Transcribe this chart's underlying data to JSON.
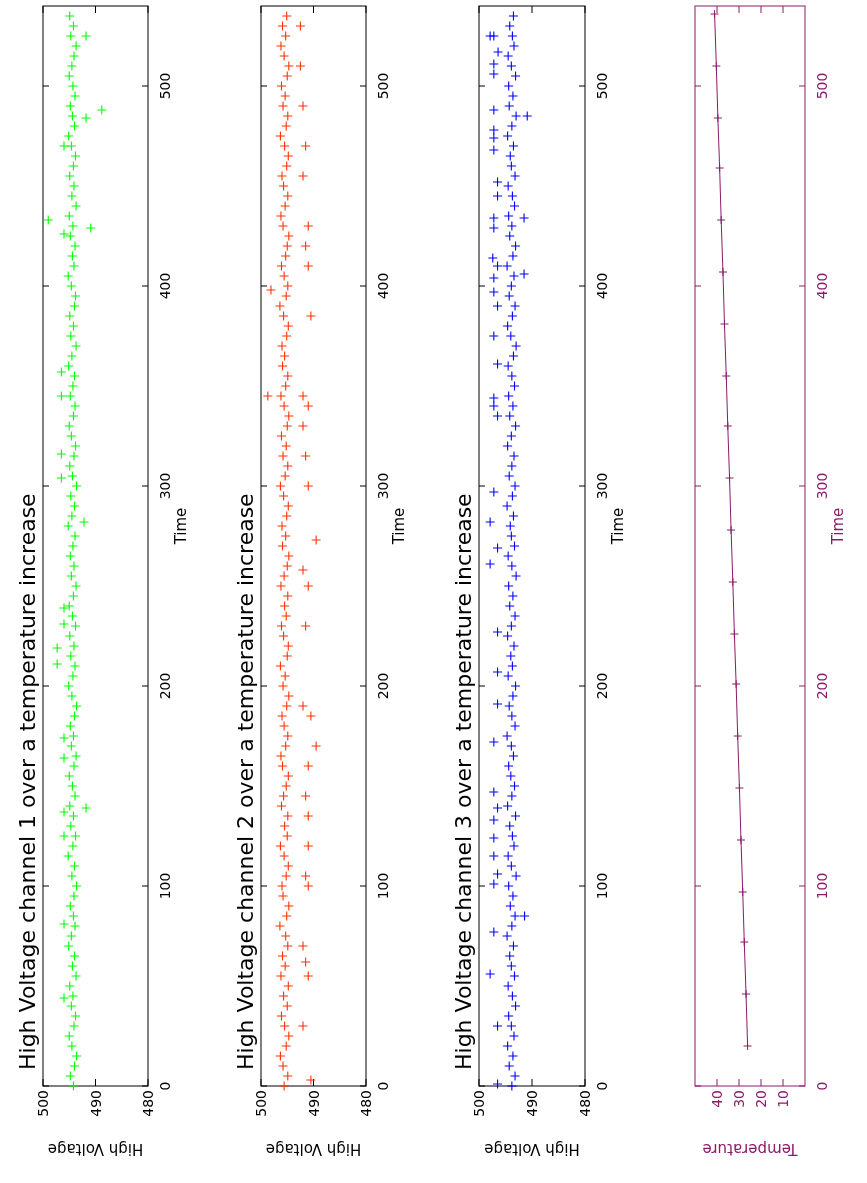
{
  "chart_data": [
    {
      "type": "scatter",
      "title": "High Voltage channel 1 over a temperature increase",
      "xlabel": "High Voltage",
      "ylabel": "Time",
      "xlim": [
        500,
        480
      ],
      "xticks": [
        480,
        490,
        500
      ],
      "ylim": [
        0,
        540
      ],
      "yticks": [
        0,
        100,
        200,
        300,
        400,
        500
      ],
      "marker": "cross",
      "series": [
        {
          "color": "#00ff00",
          "values": [
            0,
            5,
            10,
            15,
            20,
            25,
            30,
            35,
            40,
            45,
            50,
            55,
            60,
            65,
            70,
            75,
            80,
            85,
            90,
            95,
            100,
            105,
            110,
            115,
            120,
            125,
            130,
            135,
            140,
            145,
            150,
            155,
            160,
            165,
            170,
            175,
            180,
            185,
            190,
            195,
            200,
            205,
            210,
            215,
            220,
            225,
            230,
            235,
            240,
            245,
            250,
            255,
            260,
            265,
            270,
            275,
            280,
            285,
            290,
            295,
            300,
            305,
            310,
            315,
            320,
            325,
            330,
            335,
            340,
            345,
            350,
            355,
            360,
            365,
            370,
            375,
            380,
            385,
            390,
            395,
            400,
            405,
            410,
            415,
            420,
            425,
            430,
            435,
            440,
            445,
            450,
            455,
            460,
            465,
            470,
            475,
            480,
            485,
            490,
            495,
            500,
            505,
            510,
            515,
            520,
            525,
            530,
            535,
            433,
            488,
            429,
            470,
            426,
            525,
            484,
            282,
            357,
            345,
            316,
            304,
            219,
            211,
            239,
            231,
            174,
            164,
            137,
            125,
            139,
            81,
            44
          ],
          "x": [
            494.2,
            494.8,
            494.0,
            493.6,
            494.5,
            495.0,
            494.1,
            493.8,
            494.6,
            494.3,
            494.9,
            493.7,
            494.4,
            494.0,
            495.1,
            494.6,
            493.9,
            494.2,
            494.8,
            494.1,
            493.6,
            494.5,
            494.0,
            495.2,
            494.3,
            493.8,
            494.7,
            494.2,
            494.9,
            493.9,
            494.4,
            495.0,
            494.1,
            493.7,
            494.6,
            494.2,
            494.8,
            494.0,
            493.6,
            494.5,
            495.1,
            494.3,
            493.9,
            494.7,
            494.1,
            494.9,
            493.8,
            494.4,
            495.0,
            494.2,
            493.7,
            494.6,
            494.1,
            494.8,
            494.3,
            493.9,
            495.2,
            494.5,
            494.0,
            494.7,
            493.6,
            494.4,
            494.9,
            494.1,
            493.8,
            494.6,
            495.0,
            494.2,
            493.9,
            494.8,
            494.3,
            494.0,
            495.1,
            494.5,
            493.7,
            494.7,
            494.2,
            494.9,
            494.0,
            493.8,
            494.6,
            495.2,
            494.1,
            494.4,
            493.9,
            494.8,
            494.3,
            495.0,
            493.7,
            494.5,
            494.1,
            494.9,
            494.2,
            493.8,
            494.6,
            495.1,
            494.0,
            494.4,
            494.8,
            493.9,
            494.3,
            495.0,
            494.5,
            494.1,
            493.7,
            494.7,
            494.2,
            494.9,
            499.0,
            488.8,
            490.9,
            496.0,
            496.0,
            491.8,
            491.8,
            492.2,
            496.5,
            496.5,
            496.5,
            496.5,
            497.3,
            497.3,
            496.0,
            496.0,
            496.0,
            496.0,
            496.0,
            496.0,
            491.8,
            496.0,
            496.0
          ]
        }
      ]
    },
    {
      "type": "scatter",
      "title": "High Voltage channel 2 over a temperature increase",
      "xlabel": "High Voltage",
      "ylabel": "Time",
      "xlim": [
        500,
        480
      ],
      "xticks": [
        480,
        490,
        500
      ],
      "ylim": [
        0,
        540
      ],
      "yticks": [
        0,
        100,
        200,
        300,
        400,
        500
      ],
      "marker": "cross",
      "series": [
        {
          "color": "#ff3300",
          "values": [
            0,
            5,
            10,
            15,
            20,
            25,
            30,
            35,
            40,
            45,
            50,
            55,
            60,
            65,
            70,
            75,
            80,
            85,
            90,
            95,
            100,
            105,
            110,
            115,
            120,
            125,
            130,
            135,
            140,
            145,
            150,
            155,
            160,
            165,
            170,
            175,
            180,
            185,
            190,
            195,
            200,
            205,
            210,
            215,
            220,
            225,
            230,
            235,
            240,
            245,
            250,
            255,
            260,
            265,
            270,
            275,
            280,
            285,
            290,
            295,
            300,
            305,
            310,
            315,
            320,
            325,
            330,
            335,
            340,
            345,
            350,
            355,
            360,
            365,
            370,
            375,
            380,
            385,
            390,
            395,
            400,
            405,
            410,
            415,
            420,
            425,
            430,
            435,
            440,
            445,
            450,
            455,
            460,
            465,
            470,
            475,
            480,
            485,
            490,
            495,
            500,
            505,
            510,
            515,
            520,
            525,
            530,
            535,
            3,
            30,
            55,
            62,
            70,
            100,
            105,
            120,
            135,
            145,
            160,
            170,
            185,
            190,
            230,
            250,
            258,
            273,
            300,
            315,
            330,
            340,
            345,
            345,
            385,
            398,
            410,
            420,
            430,
            455,
            470,
            490,
            510,
            530
          ],
          "x": [
            495.6,
            494.9,
            495.8,
            496.3,
            495.2,
            494.7,
            495.5,
            496.1,
            495.0,
            495.7,
            494.8,
            496.2,
            495.4,
            495.9,
            494.9,
            495.3,
            496.4,
            495.1,
            494.7,
            495.8,
            496.0,
            495.2,
            494.8,
            495.6,
            496.3,
            495.0,
            495.5,
            494.9,
            496.1,
            495.7,
            495.2,
            494.8,
            495.9,
            496.2,
            495.3,
            494.9,
            495.6,
            496.0,
            495.1,
            494.7,
            495.8,
            495.4,
            496.3,
            495.0,
            494.8,
            495.7,
            496.1,
            495.2,
            495.5,
            494.9,
            496.2,
            495.6,
            495.0,
            494.7,
            495.9,
            495.3,
            496.0,
            495.1,
            494.8,
            495.7,
            496.3,
            495.4,
            494.9,
            495.8,
            495.2,
            496.1,
            495.0,
            494.7,
            495.6,
            496.2,
            495.3,
            494.9,
            495.9,
            495.5,
            496.0,
            495.1,
            494.8,
            495.7,
            496.4,
            495.2,
            494.9,
            495.6,
            496.1,
            495.3,
            495.0,
            494.7,
            495.8,
            496.2,
            495.4,
            494.9,
            495.7,
            496.0,
            495.1,
            494.8,
            495.5,
            496.3,
            495.2,
            494.9,
            495.8,
            495.4,
            496.1,
            495.0,
            494.7,
            495.6,
            496.2,
            495.3,
            495.9,
            495.1,
            490.5,
            492.0,
            491.0,
            491.5,
            492.0,
            491.0,
            491.5,
            491.0,
            491.0,
            491.5,
            491.0,
            489.5,
            490.5,
            492.0,
            491.5,
            491.0,
            492.0,
            489.5,
            491.0,
            491.5,
            492.0,
            491.0,
            492.0,
            498.7,
            490.5,
            498.1,
            491.0,
            491.5,
            491.0,
            492.0,
            491.5,
            492.0,
            492.5,
            492.5
          ]
        }
      ]
    },
    {
      "type": "scatter",
      "title": "High Voltage channel 3 over a temperature increase",
      "xlabel": "High Voltage",
      "ylabel": "Time",
      "xlim": [
        500,
        480
      ],
      "xticks": [
        480,
        490,
        500
      ],
      "ylim": [
        0,
        540
      ],
      "yticks": [
        0,
        100,
        200,
        300,
        400,
        500
      ],
      "marker": "cross",
      "series": [
        {
          "color": "#0000ff",
          "values": [
            0,
            5,
            10,
            15,
            20,
            25,
            30,
            35,
            40,
            45,
            50,
            55,
            60,
            65,
            70,
            75,
            80,
            85,
            90,
            95,
            100,
            105,
            110,
            115,
            120,
            125,
            130,
            135,
            140,
            145,
            150,
            155,
            160,
            165,
            170,
            175,
            180,
            185,
            190,
            195,
            200,
            205,
            210,
            215,
            220,
            225,
            230,
            235,
            240,
            245,
            250,
            255,
            260,
            265,
            270,
            275,
            280,
            285,
            290,
            295,
            300,
            305,
            310,
            315,
            320,
            325,
            330,
            335,
            340,
            345,
            350,
            355,
            360,
            365,
            370,
            375,
            380,
            385,
            390,
            395,
            400,
            405,
            410,
            415,
            420,
            425,
            430,
            435,
            440,
            445,
            450,
            455,
            460,
            465,
            470,
            475,
            480,
            485,
            490,
            495,
            500,
            505,
            510,
            515,
            520,
            525,
            530,
            535,
            525,
            525,
            511,
            506,
            517,
            488,
            485,
            478,
            474,
            468,
            452,
            445,
            434,
            429,
            434,
            414,
            404,
            410,
            406,
            397,
            390,
            375,
            361,
            344,
            340,
            335,
            297,
            282,
            269,
            261,
            227,
            207,
            191,
            172,
            147,
            139,
            133,
            124,
            115,
            106,
            101,
            85,
            77,
            56,
            30,
            1
          ],
          "x": [
            493.8,
            493.2,
            494.3,
            493.6,
            494.6,
            493.4,
            493.9,
            494.4,
            493.1,
            493.7,
            494.5,
            493.3,
            493.9,
            494.2,
            493.5,
            494.7,
            493.8,
            493.2,
            494.1,
            493.6,
            494.4,
            493.0,
            493.9,
            494.5,
            493.4,
            493.7,
            494.2,
            493.1,
            494.6,
            493.8,
            493.3,
            494.0,
            494.4,
            493.5,
            493.9,
            494.7,
            493.2,
            493.8,
            494.3,
            493.6,
            493.1,
            494.5,
            493.7,
            494.0,
            493.4,
            494.6,
            493.9,
            493.2,
            494.2,
            493.6,
            494.4,
            493.0,
            493.8,
            494.5,
            493.3,
            493.9,
            494.1,
            493.5,
            494.7,
            493.7,
            493.2,
            494.3,
            493.8,
            493.4,
            494.6,
            493.9,
            493.1,
            494.2,
            493.6,
            494.4,
            493.3,
            493.8,
            494.5,
            493.5,
            493.0,
            494.0,
            494.6,
            493.7,
            493.2,
            494.3,
            493.9,
            493.4,
            494.7,
            493.6,
            493.1,
            494.2,
            493.8,
            494.4,
            493.3,
            493.7,
            494.5,
            493.2,
            493.9,
            494.1,
            493.5,
            494.6,
            493.8,
            493.0,
            494.3,
            493.6,
            494.4,
            493.1,
            493.9,
            494.5,
            493.4,
            493.7,
            494.2,
            493.5,
            497.9,
            497.2,
            497.2,
            497.2,
            496.4,
            497.2,
            490.9,
            497.2,
            497.2,
            497.2,
            496.5,
            496.5,
            497.2,
            497.2,
            491.5,
            497.4,
            497.2,
            496.5,
            491.5,
            497.2,
            496.5,
            497.2,
            496.5,
            497.2,
            497.2,
            496.5,
            497.2,
            497.9,
            496.5,
            497.9,
            496.5,
            496.5,
            496.5,
            497.2,
            497.2,
            496.5,
            497.2,
            497.2,
            497.2,
            496.5,
            497.2,
            491.4,
            497.2,
            497.9,
            496.5,
            496.5
          ]
        }
      ]
    },
    {
      "type": "line",
      "xlabel": "Temperature",
      "ylabel": "Time",
      "xlim": [
        50,
        0
      ],
      "xticks": [
        10,
        20,
        30,
        40
      ],
      "ylim": [
        0,
        540
      ],
      "yticks": [
        0,
        100,
        200,
        300,
        400,
        500
      ],
      "marker": "cross",
      "series": [
        {
          "color": "#8c1a6a",
          "values": [
            20,
            46,
            72,
            97,
            123,
            149,
            175,
            201,
            226,
            252,
            278,
            304,
            330,
            355,
            381,
            407,
            433,
            459,
            484,
            510,
            536
          ],
          "x": [
            26.1,
            26.8,
            27.6,
            28.3,
            29.1,
            29.8,
            30.6,
            31.3,
            32.1,
            32.8,
            33.6,
            34.3,
            35.1,
            35.8,
            36.6,
            37.3,
            38.1,
            38.8,
            39.6,
            40.3,
            41.1
          ]
        }
      ]
    }
  ]
}
